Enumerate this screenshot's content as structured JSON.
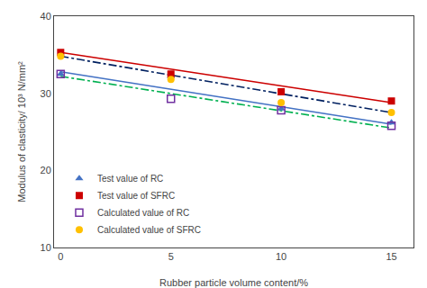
{
  "chart_data": {
    "type": "scatter",
    "x": [
      0,
      5,
      10,
      15
    ],
    "xlabel": "Rubber particle volume content/%",
    "ylabel": "Modulus of clasticity/ 10³ N/mm²",
    "xlim": [
      -0.3,
      16
    ],
    "xticks": [
      0,
      5,
      10,
      15
    ],
    "ylim": [
      10,
      40
    ],
    "yticks": [
      10,
      20,
      30,
      40
    ],
    "grid": false,
    "legend": "lower left",
    "series": [
      {
        "type": "line",
        "x": [
          0,
          15
        ],
        "values": [
          32.8,
          26.0
        ],
        "color": "#4472c4",
        "line_style": "solid"
      },
      {
        "type": "line",
        "x": [
          0,
          15
        ],
        "values": [
          35.3,
          28.8
        ],
        "color": "#cc0000",
        "line_style": "solid"
      },
      {
        "type": "line",
        "x": [
          0,
          15
        ],
        "values": [
          32.2,
          25.5
        ],
        "color": "#00b050",
        "line_style": "dashdot"
      },
      {
        "type": "line",
        "x": [
          0,
          15
        ],
        "values": [
          34.8,
          27.5
        ],
        "color": "#002060",
        "line_style": "dashdot"
      },
      {
        "type": "scatter",
        "name": "Test value of RC",
        "values": [
          32.5,
          32.2,
          28.0,
          26.2
        ],
        "color": "#4472c4",
        "marker": "triangle-up"
      },
      {
        "type": "scatter",
        "name": "Test value of SFRC",
        "values": [
          35.3,
          32.5,
          30.2,
          29.0
        ],
        "color": "#cc0000",
        "marker": "square"
      },
      {
        "type": "scatter",
        "name": "Calculated value of RC",
        "values": [
          32.5,
          29.3,
          27.8,
          25.8
        ],
        "color": "#7030a0",
        "marker": "square-open"
      },
      {
        "type": "scatter",
        "name": "Calculated value of SFRC",
        "values": [
          34.8,
          31.8,
          28.8,
          27.5
        ],
        "color": "#ffc000",
        "marker": "circle"
      }
    ]
  }
}
